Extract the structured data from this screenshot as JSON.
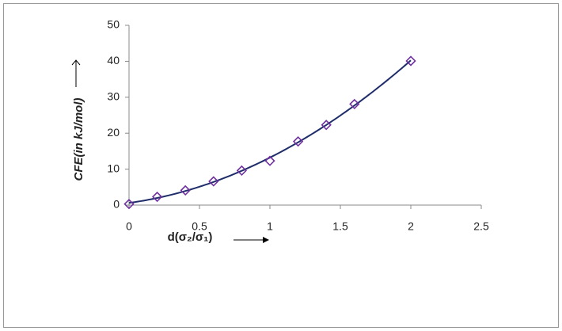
{
  "chart_data": {
    "type": "scatter",
    "xlabel": "d(σ₂/σ₁)",
    "ylabel": "CFE(in kJ/mol)",
    "series": [
      {
        "name": "CFE",
        "color": "#7030a0",
        "line_color": "#1f2d6b",
        "x": [
          0,
          0.2,
          0.4,
          0.6,
          0.8,
          1.0,
          1.2,
          1.4,
          1.6,
          2.0
        ],
        "values": [
          0.3,
          2.3,
          4.1,
          6.6,
          9.6,
          12.3,
          17.7,
          22.3,
          28.1,
          40.1
        ]
      }
    ],
    "trendline": {
      "type": "polynomial",
      "order": 2
    },
    "xlim": [
      0,
      2.5
    ],
    "xticks": [
      0,
      0.5,
      1,
      1.5,
      2,
      2.5
    ],
    "ylim": [
      0,
      50
    ],
    "yticks": [
      0,
      10,
      20,
      30,
      40,
      50
    ],
    "grid": false
  }
}
